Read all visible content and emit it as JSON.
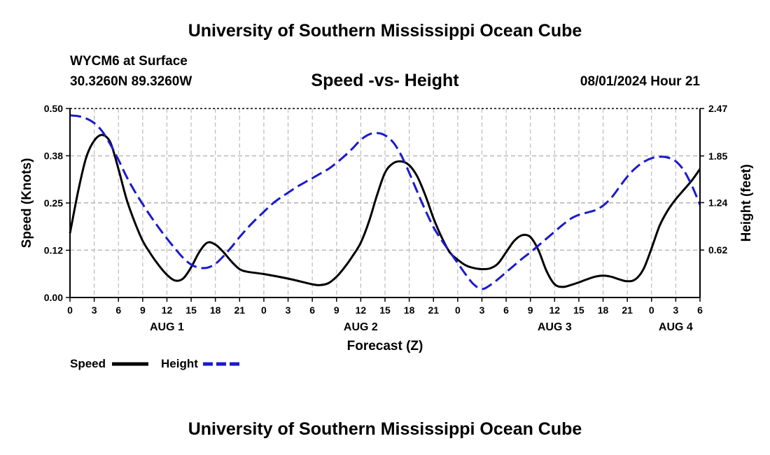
{
  "header": {
    "title": "University of Southern Mississippi Ocean Cube",
    "station": "WYCM6 at Surface",
    "coordinates": "30.3260N  89.3260W",
    "subtitle": "Speed -vs- Height",
    "datetime": "08/01/2024 Hour 21"
  },
  "footer": {
    "title": "University of Southern Mississippi Ocean Cube"
  },
  "legend": {
    "speed_label": "Speed",
    "height_label": "Height"
  },
  "colors": {
    "speed": "#000000",
    "height": "#1a1acd",
    "grid": "#bbbbbb"
  },
  "chart_data": {
    "type": "line",
    "title": "Speed -vs- Height",
    "xlabel": "Forecast (Z)",
    "ylabel_left": "Speed (Knots)",
    "ylabel_right": "Height (feet)",
    "x_unit": "forecast hour from Aug 1 00Z",
    "xlim": [
      0,
      78
    ],
    "ylim_left": [
      0,
      0.5
    ],
    "ylim_right": [
      0,
      2.47
    ],
    "grid": true,
    "legend_position": "bottom-left",
    "x_ticks": [
      {
        "x": 0,
        "label": "0"
      },
      {
        "x": 3,
        "label": "3"
      },
      {
        "x": 6,
        "label": "6"
      },
      {
        "x": 9,
        "label": "9"
      },
      {
        "x": 12,
        "label": "12"
      },
      {
        "x": 15,
        "label": "15"
      },
      {
        "x": 18,
        "label": "18"
      },
      {
        "x": 21,
        "label": "21"
      },
      {
        "x": 24,
        "label": "0"
      },
      {
        "x": 27,
        "label": "3"
      },
      {
        "x": 30,
        "label": "6"
      },
      {
        "x": 33,
        "label": "9"
      },
      {
        "x": 36,
        "label": "12"
      },
      {
        "x": 39,
        "label": "15"
      },
      {
        "x": 42,
        "label": "18"
      },
      {
        "x": 45,
        "label": "21"
      },
      {
        "x": 48,
        "label": "0"
      },
      {
        "x": 51,
        "label": "3"
      },
      {
        "x": 54,
        "label": "6"
      },
      {
        "x": 57,
        "label": "9"
      },
      {
        "x": 60,
        "label": "12"
      },
      {
        "x": 63,
        "label": "15"
      },
      {
        "x": 66,
        "label": "18"
      },
      {
        "x": 69,
        "label": "21"
      },
      {
        "x": 72,
        "label": "0"
      },
      {
        "x": 75,
        "label": "3"
      },
      {
        "x": 78,
        "label": "6"
      }
    ],
    "day_labels": [
      {
        "x": 12,
        "label": "AUG 1"
      },
      {
        "x": 36,
        "label": "AUG 2"
      },
      {
        "x": 60,
        "label": "AUG 3"
      },
      {
        "x": 75,
        "label": "AUG 4"
      }
    ],
    "y_ticks_left": [
      {
        "value": 0,
        "label": "0.00"
      },
      {
        "value": 0.125,
        "label": "0.12"
      },
      {
        "value": 0.25,
        "label": "0.25"
      },
      {
        "value": 0.375,
        "label": "0.38"
      },
      {
        "value": 0.5,
        "label": "0.50"
      }
    ],
    "y_ticks_right": [
      {
        "value": 0.62,
        "label": "0.62"
      },
      {
        "value": 1.24,
        "label": "1.24"
      },
      {
        "value": 1.85,
        "label": "1.85"
      },
      {
        "value": 2.47,
        "label": "2.47"
      }
    ],
    "series": [
      {
        "name": "Speed",
        "axis": "left",
        "style": "solid",
        "x": [
          0,
          1,
          2,
          3,
          4,
          5,
          6,
          7,
          8,
          9,
          10,
          11,
          12,
          13,
          14,
          15,
          16,
          17,
          18,
          19,
          20,
          21,
          22,
          24,
          27,
          30,
          31,
          32,
          33,
          34,
          35,
          36,
          37,
          38,
          39,
          40,
          41,
          42,
          43,
          44,
          45,
          46,
          47,
          48,
          49,
          50,
          51,
          52,
          53,
          54,
          55,
          56,
          57,
          58,
          59,
          60,
          61,
          62,
          63,
          64,
          65,
          66,
          67,
          68,
          69,
          70,
          71,
          72,
          73,
          74,
          75,
          76,
          77,
          78
        ],
        "values": [
          0.17,
          0.28,
          0.37,
          0.415,
          0.43,
          0.41,
          0.34,
          0.26,
          0.2,
          0.15,
          0.115,
          0.085,
          0.06,
          0.045,
          0.05,
          0.08,
          0.12,
          0.145,
          0.14,
          0.12,
          0.095,
          0.075,
          0.068,
          0.062,
          0.05,
          0.035,
          0.033,
          0.038,
          0.055,
          0.08,
          0.11,
          0.145,
          0.2,
          0.27,
          0.33,
          0.355,
          0.36,
          0.35,
          0.32,
          0.27,
          0.21,
          0.16,
          0.12,
          0.1,
          0.085,
          0.078,
          0.075,
          0.077,
          0.09,
          0.12,
          0.15,
          0.165,
          0.16,
          0.125,
          0.07,
          0.035,
          0.028,
          0.033,
          0.04,
          0.048,
          0.055,
          0.058,
          0.055,
          0.048,
          0.043,
          0.048,
          0.075,
          0.13,
          0.19,
          0.23,
          0.26,
          0.285,
          0.31,
          0.34
        ]
      },
      {
        "name": "Height",
        "axis": "right",
        "style": "dashed",
        "x": [
          0,
          1,
          2,
          3,
          4,
          5,
          6,
          7,
          8,
          9,
          10,
          11,
          12,
          13,
          14,
          15,
          16,
          17,
          18,
          19,
          20,
          21,
          22,
          23,
          24,
          25,
          26,
          27,
          28,
          29,
          30,
          31,
          32,
          33,
          34,
          35,
          36,
          37,
          38,
          39,
          40,
          41,
          42,
          43,
          44,
          45,
          46,
          47,
          48,
          49,
          50,
          51,
          52,
          53,
          54,
          55,
          56,
          57,
          58,
          59,
          60,
          61,
          62,
          63,
          64,
          65,
          66,
          67,
          68,
          69,
          70,
          71,
          72,
          73,
          74,
          75,
          76,
          77,
          78
        ],
        "values": [
          2.38,
          2.37,
          2.34,
          2.28,
          2.17,
          2.0,
          1.8,
          1.58,
          1.39,
          1.22,
          1.06,
          0.91,
          0.77,
          0.64,
          0.52,
          0.43,
          0.39,
          0.39,
          0.44,
          0.54,
          0.66,
          0.79,
          0.91,
          1.02,
          1.12,
          1.22,
          1.3,
          1.37,
          1.44,
          1.5,
          1.56,
          1.62,
          1.68,
          1.76,
          1.85,
          1.95,
          2.06,
          2.13,
          2.15,
          2.12,
          2.03,
          1.86,
          1.63,
          1.38,
          1.14,
          0.92,
          0.75,
          0.6,
          0.45,
          0.3,
          0.17,
          0.11,
          0.16,
          0.24,
          0.33,
          0.42,
          0.51,
          0.59,
          0.68,
          0.77,
          0.86,
          0.95,
          1.03,
          1.08,
          1.11,
          1.14,
          1.2,
          1.3,
          1.44,
          1.58,
          1.69,
          1.77,
          1.82,
          1.84,
          1.83,
          1.78,
          1.66,
          1.46,
          1.21
        ]
      }
    ]
  }
}
